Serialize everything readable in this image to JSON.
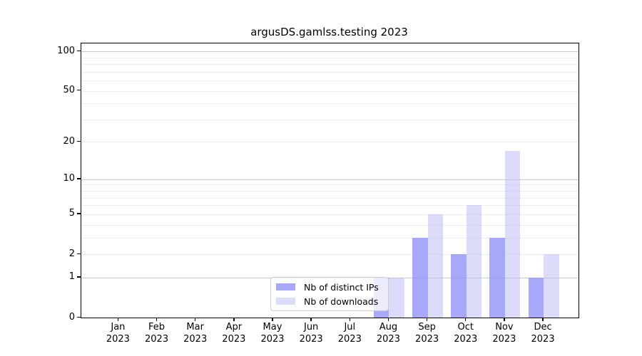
{
  "title": "argusDS.gamlss.testing 2023",
  "chart_data": {
    "type": "bar",
    "title": "argusDS.gamlss.testing 2023",
    "categories": [
      "Jan 2023",
      "Feb 2023",
      "Mar 2023",
      "Apr 2023",
      "May 2023",
      "Jun 2023",
      "Jul 2023",
      "Aug 2023",
      "Sep 2023",
      "Oct 2023",
      "Nov 2023",
      "Dec 2023"
    ],
    "x_tick_months": [
      "Jan",
      "Feb",
      "Mar",
      "Apr",
      "May",
      "Jun",
      "Jul",
      "Aug",
      "Sep",
      "Oct",
      "Nov",
      "Dec"
    ],
    "x_tick_year": "2023",
    "series": [
      {
        "name": "Nb of distinct IPs",
        "color": "#a8a8fa",
        "rgba": "rgba(146,146,249,0.8)",
        "values": [
          0,
          0,
          0,
          0,
          0,
          0,
          0,
          1,
          3,
          2,
          3,
          1
        ]
      },
      {
        "name": "Nb of downloads",
        "color": "#dcdcfa",
        "rgba": "rgba(177,177,244,0.45)",
        "values": [
          0,
          0,
          0,
          0,
          0,
          0,
          0,
          1,
          5,
          6,
          17,
          2
        ]
      }
    ],
    "y_ticks": [
      0,
      1,
      2,
      5,
      10,
      20,
      50,
      100
    ],
    "y_scale": "log1p",
    "ylim": [
      0,
      115
    ],
    "grid": true,
    "major_gridlines": [
      1,
      10,
      100
    ],
    "minor_gridlines": [
      2,
      3,
      4,
      5,
      6,
      7,
      8,
      9,
      20,
      30,
      40,
      50,
      60,
      70,
      80,
      90
    ],
    "gridline_minor_color": "#ededed",
    "gridline_major_color": "#c9c9c9",
    "legend_position": "bottom-center-inside"
  }
}
